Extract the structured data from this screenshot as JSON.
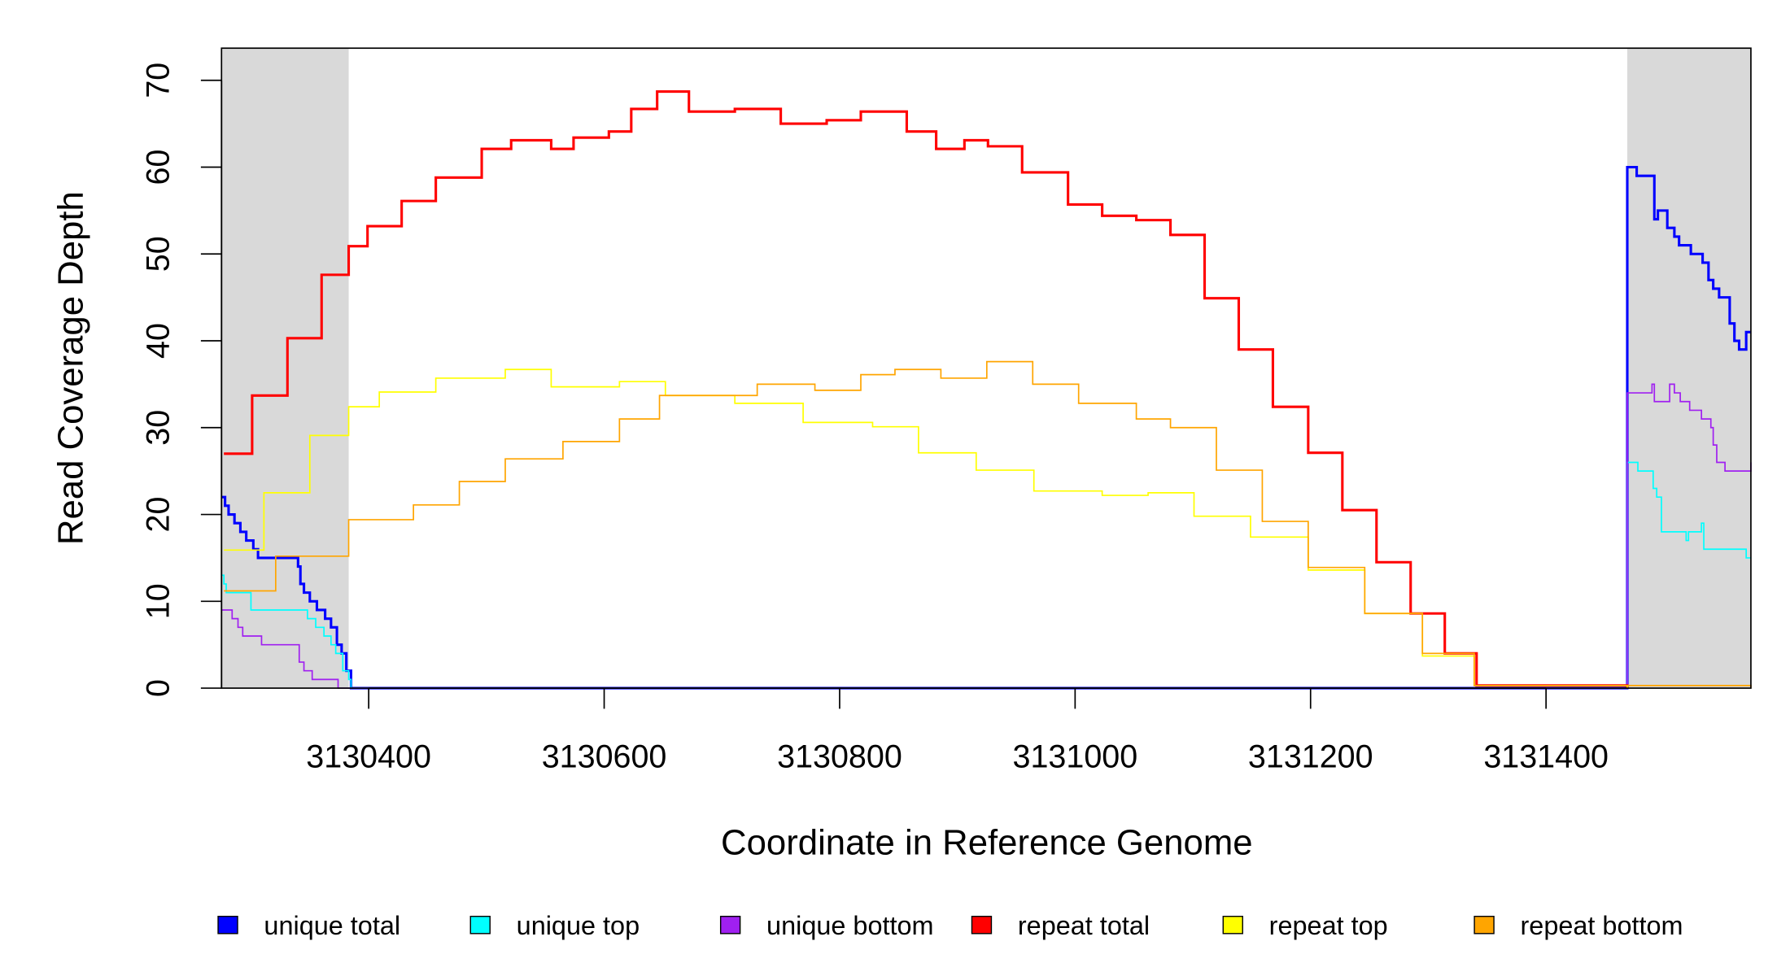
{
  "chart_data": {
    "type": "line",
    "xlabel": "Coordinate in Reference Genome",
    "ylabel": "Read Coverage Depth",
    "xlim": [
      3130275,
      3131574
    ],
    "ylim": [
      0,
      73.7
    ],
    "xticks": [
      3130400,
      3130600,
      3130800,
      3131000,
      3131200,
      3131400
    ],
    "xtick_labels": [
      "3130400",
      "3130600",
      "3130800",
      "3131000",
      "3131200",
      "3131400"
    ],
    "yticks": [
      0,
      10,
      20,
      30,
      40,
      50,
      60,
      70
    ],
    "ytick_labels": [
      "0",
      "10",
      "20",
      "30",
      "40",
      "50",
      "60",
      "70"
    ],
    "shaded_regions": [
      [
        3130275,
        3130383
      ],
      [
        3131469,
        3131574
      ]
    ],
    "shade_color": "#d9d9d9",
    "legend_position": "bottom",
    "series": [
      {
        "name": "unique total",
        "color": "#0000ff",
        "width": 2.2,
        "x": [
          3130275,
          3130278,
          3130281,
          3130286,
          3130291,
          3130296,
          3130302,
          3130306,
          3130340,
          3130342,
          3130345,
          3130350,
          3130356,
          3130363,
          3130368,
          3130373,
          3130377,
          3130381,
          3130385,
          3131469,
          3131477,
          3131484,
          3131492,
          3131495,
          3131503,
          3131509,
          3131513,
          3131523,
          3131527,
          3131533,
          3131538,
          3131542,
          3131547,
          3131556,
          3131560,
          3131564,
          3131570,
          3131574
        ],
        "y": [
          22,
          21,
          20,
          19,
          18,
          17,
          16,
          15,
          14,
          12,
          11,
          10,
          9,
          8,
          7,
          5,
          4,
          2,
          0,
          60,
          59,
          59,
          54,
          55,
          53,
          52,
          51,
          50,
          50,
          49,
          47,
          46,
          45,
          42,
          40,
          39,
          41,
          41
        ]
      },
      {
        "name": "unique top",
        "color": "#00ffff",
        "width": 1.2,
        "x": [
          3130275,
          3130277,
          3130279,
          3130295,
          3130300,
          3130343,
          3130348,
          3130355,
          3130362,
          3130368,
          3130372,
          3130378,
          3130383,
          3130385,
          3131469,
          3131478,
          3131491,
          3131494,
          3131498,
          3131507,
          3131519,
          3131521,
          3131532,
          3131534,
          3131536,
          3131550,
          3131570,
          3131574
        ],
        "y": [
          13,
          12,
          11,
          11,
          9,
          9,
          8,
          7,
          6,
          5,
          4,
          2,
          1,
          0,
          26,
          25,
          23,
          22,
          18,
          18,
          17,
          18,
          19,
          16,
          16,
          16,
          15,
          15
        ]
      },
      {
        "name": "unique bottom",
        "color": "#a020f0",
        "width": 1.2,
        "x": [
          3130275,
          3130284,
          3130289,
          3130293,
          3130309,
          3130341,
          3130345,
          3130352,
          3130374,
          3130376,
          3131469,
          3131490,
          3131492,
          3131496,
          3131505,
          3131509,
          3131514,
          3131522,
          3131532,
          3131540,
          3131542,
          3131545,
          3131552,
          3131560,
          3131574
        ],
        "y": [
          9,
          8,
          7,
          6,
          5,
          3,
          2,
          1,
          0,
          0,
          34,
          35,
          33,
          33,
          35,
          34,
          33,
          32,
          31,
          30,
          28,
          26,
          25,
          25,
          26
        ]
      },
      {
        "name": "repeat total",
        "color": "#ff0000",
        "width": 2.2,
        "x": [
          3130277,
          3130301,
          3130331,
          3130360,
          3130383,
          3130399,
          3130428,
          3130457,
          3130496,
          3130521,
          3130555,
          3130574,
          3130604,
          3130623,
          3130645,
          3130672,
          3130711,
          3130750,
          3130789,
          3130818,
          3130857,
          3130882,
          3130906,
          3130926,
          3130955,
          3130994,
          3131023,
          3131052,
          3131081,
          3131110,
          3131139,
          3131168,
          3131198,
          3131227,
          3131256,
          3131285,
          3131314,
          3131341,
          3131469
        ],
        "y": [
          27,
          33.7,
          40.3,
          47.6,
          50.9,
          53.2,
          56.1,
          58.8,
          62.1,
          63.1,
          62.1,
          63.4,
          64.1,
          66.7,
          68.7,
          66.4,
          66.7,
          65,
          65.4,
          66.4,
          64.1,
          62.1,
          63.1,
          62.4,
          59.4,
          55.7,
          54.4,
          53.9,
          52.2,
          44.9,
          39,
          32.4,
          27.1,
          20.5,
          14.5,
          8.6,
          4,
          0.3,
          0
        ]
      },
      {
        "name": "repeat top",
        "color": "#ffff00",
        "width": 1.2,
        "x": [
          3130277,
          3130311,
          3130350,
          3130383,
          3130409,
          3130457,
          3130516,
          3130555,
          3130613,
          3130652,
          3130711,
          3130769,
          3130828,
          3130867,
          3130916,
          3130965,
          3131023,
          3131062,
          3131101,
          3131149,
          3131198,
          3131246,
          3131295,
          3131339,
          3131469
        ],
        "y": [
          15.9,
          22.5,
          29.1,
          32.4,
          34.1,
          35.7,
          36.7,
          34.7,
          35.3,
          33.7,
          32.8,
          30.6,
          30.1,
          27.1,
          25.1,
          22.7,
          22.2,
          22.5,
          19.8,
          17.4,
          13.6,
          8.6,
          3.7,
          0.3,
          0
        ]
      },
      {
        "name": "repeat bottom",
        "color": "#ffa500",
        "width": 1.2,
        "x": [
          3130277,
          3130321,
          3130383,
          3130438,
          3130477,
          3130516,
          3130565,
          3130613,
          3130647,
          3130691,
          3130730,
          3130779,
          3130818,
          3130847,
          3130886,
          3130925,
          3130964,
          3131003,
          3131052,
          3131081,
          3131120,
          3131159,
          3131198,
          3131246,
          3131295,
          3131339,
          3131574
        ],
        "y": [
          11.2,
          15.2,
          19.4,
          21.1,
          23.8,
          26.4,
          28.4,
          31,
          33.7,
          33.7,
          35,
          34.3,
          36.1,
          36.7,
          35.7,
          37.6,
          35,
          32.8,
          31,
          30,
          25.1,
          19.2,
          13.9,
          8.6,
          4,
          0.3,
          0
        ]
      }
    ]
  }
}
